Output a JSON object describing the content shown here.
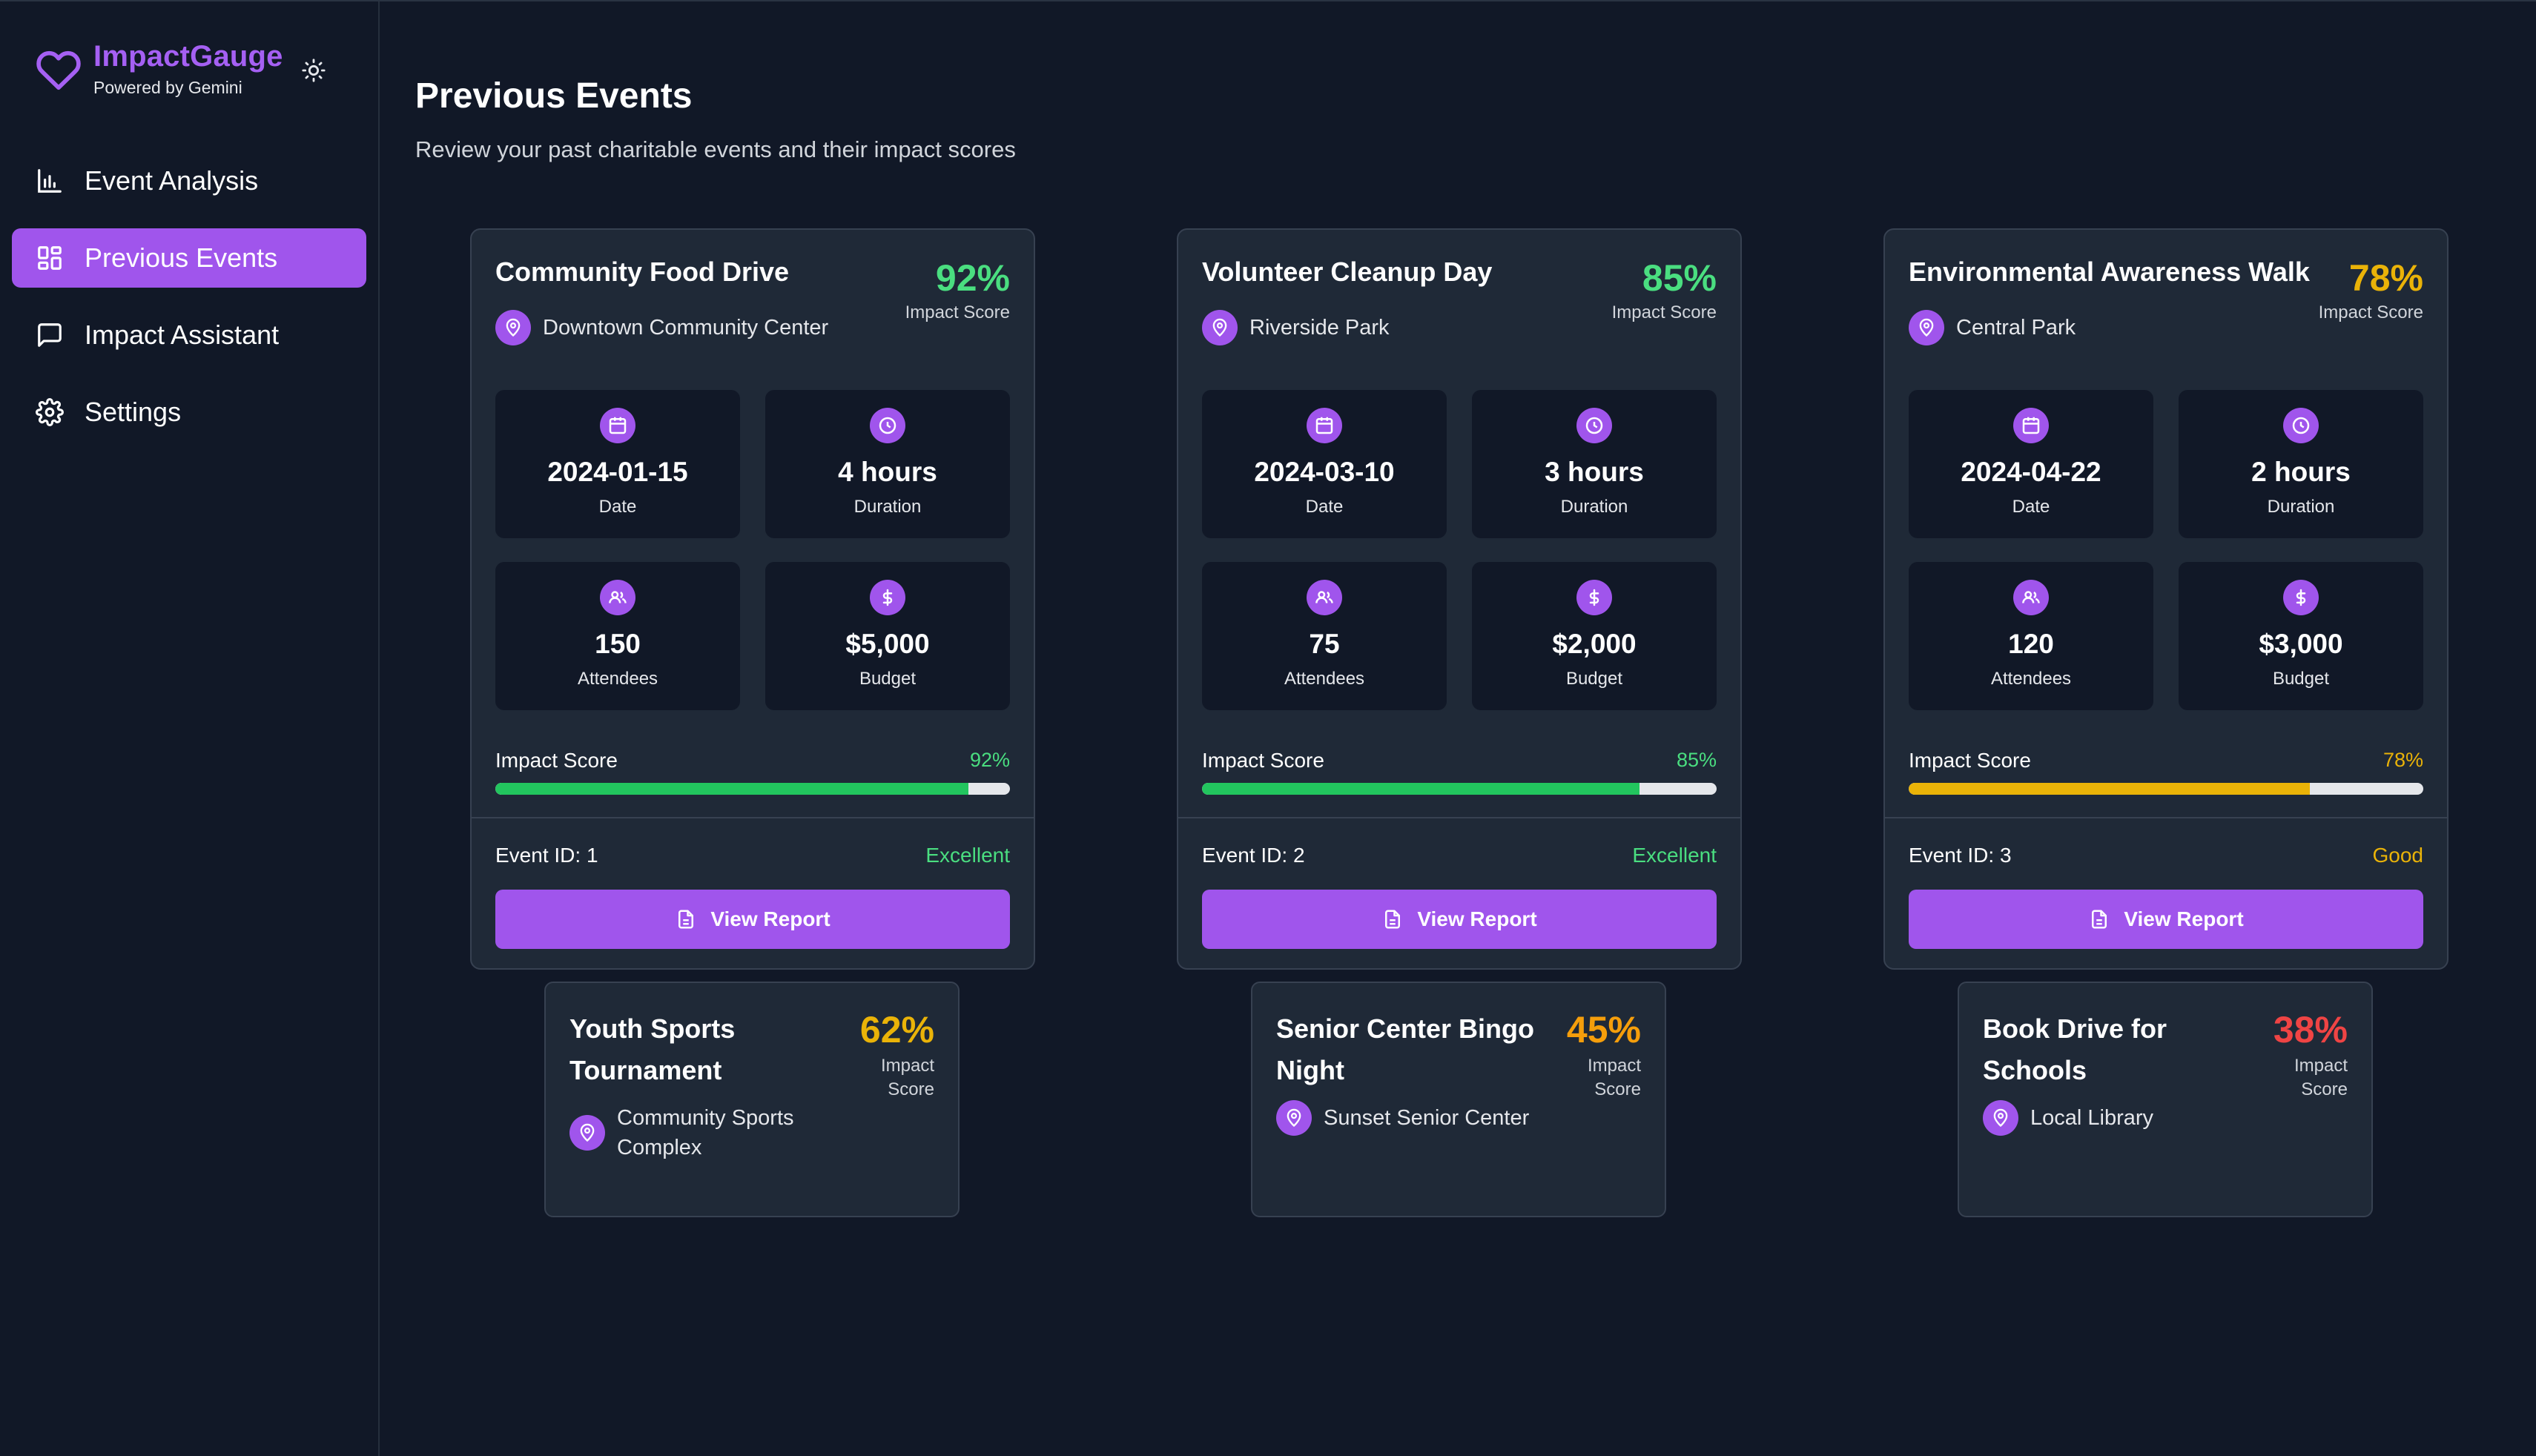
{
  "brand": {
    "name": "ImpactGauge",
    "subtitle": "Powered by Gemini"
  },
  "nav": [
    {
      "label": "Event Analysis",
      "icon": "bar-chart-icon",
      "active": false
    },
    {
      "label": "Previous Events",
      "icon": "grid-icon",
      "active": true
    },
    {
      "label": "Impact Assistant",
      "icon": "chat-icon",
      "active": false
    },
    {
      "label": "Settings",
      "icon": "gear-icon",
      "active": false
    }
  ],
  "page": {
    "title": "Previous Events",
    "subtitle": "Review your past charitable events and their impact scores"
  },
  "score_label": "Impact Score",
  "stat_labels": {
    "date": "Date",
    "duration": "Duration",
    "attendees": "Attendees",
    "budget": "Budget"
  },
  "button_label": "View Report",
  "events": [
    {
      "title": "Community Food Drive",
      "location": "Downtown Community Center",
      "score": "92%",
      "score_value": 92,
      "score_color": "#4ade80",
      "date": "2024-01-15",
      "duration": "4 hours",
      "attendees": "150",
      "budget": "$5,000",
      "event_id": "Event ID: 1",
      "rating": "Excellent",
      "bar_color": "#22c55e"
    },
    {
      "title": "Volunteer Cleanup Day",
      "location": "Riverside Park",
      "score": "85%",
      "score_value": 85,
      "score_color": "#4ade80",
      "date": "2024-03-10",
      "duration": "3 hours",
      "attendees": "75",
      "budget": "$2,000",
      "event_id": "Event ID: 2",
      "rating": "Excellent",
      "bar_color": "#22c55e"
    },
    {
      "title": "Environmental Awareness Walk",
      "location": "Central Park",
      "score": "78%",
      "score_value": 78,
      "score_color": "#eab308",
      "date": "2024-04-22",
      "duration": "2 hours",
      "attendees": "120",
      "budget": "$3,000",
      "event_id": "Event ID: 3",
      "rating": "Good",
      "bar_color": "#eab308"
    }
  ],
  "mini_events": [
    {
      "title": "Youth Sports Tournament",
      "location": "Community Sports Complex",
      "score": "62%",
      "score_color": "#eab308",
      "score_label": "Impact Score"
    },
    {
      "title": "Senior Center Bingo Night",
      "location": "Sunset Senior Center",
      "score": "45%",
      "score_color": "#f59e0b",
      "score_label": "Impact Score"
    },
    {
      "title": "Book Drive for Schools",
      "location": "Local Library",
      "score": "38%",
      "score_color": "#ef4444",
      "score_label": "Impact Score"
    }
  ]
}
